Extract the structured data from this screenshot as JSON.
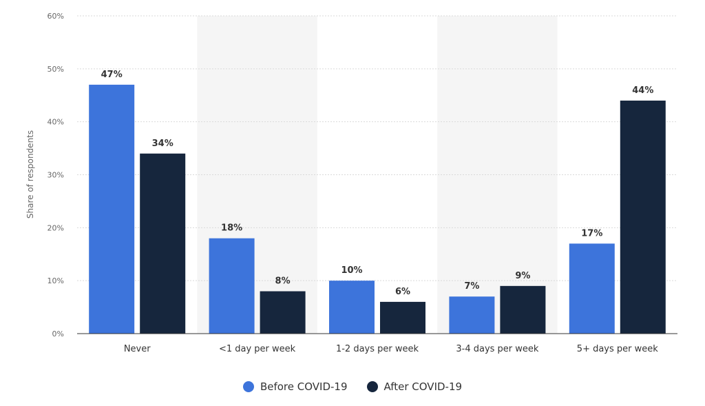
{
  "chart_data": {
    "type": "bar",
    "categories": [
      "Never",
      "<1 day per week",
      "1-2 days per week",
      "3-4 days per week",
      "5+ days per week"
    ],
    "series": [
      {
        "name": "Before COVID-19",
        "values": [
          47,
          18,
          10,
          7,
          17
        ],
        "labels": [
          "47%",
          "18%",
          "10%",
          "7%",
          "17%"
        ],
        "color": "#3d74db"
      },
      {
        "name": "After COVID-19",
        "values": [
          34,
          8,
          6,
          9,
          44
        ],
        "labels": [
          "34%",
          "8%",
          "6%",
          "9%",
          "44%"
        ],
        "color": "#16263d"
      }
    ],
    "ylabel": "Share of respondents",
    "xlabel": "",
    "ylim": [
      0,
      60
    ],
    "yticks": [
      0,
      10,
      20,
      30,
      40,
      50,
      60
    ],
    "ytick_labels": [
      "0%",
      "10%",
      "20%",
      "30%",
      "40%",
      "50%",
      "60%"
    ],
    "grid": true,
    "legend_position": "bottom-center"
  }
}
